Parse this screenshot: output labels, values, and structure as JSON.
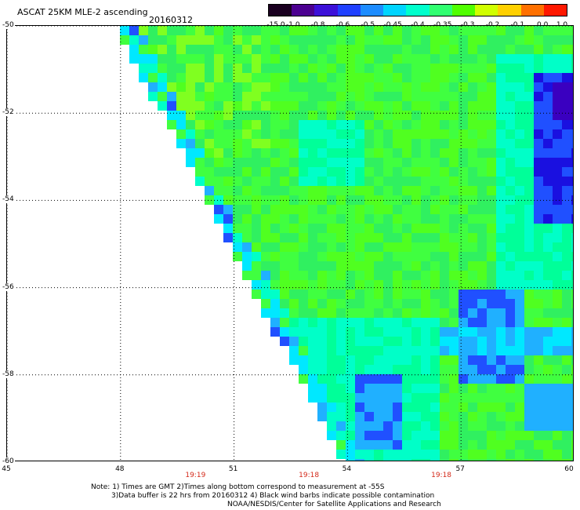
{
  "title": "ASCAT 25KM MLE-2 ascending",
  "date": "20160312",
  "colorbar": {
    "labels": [
      "-15.0",
      "-1.0",
      "-0.8",
      "-0.6",
      "-0.5",
      "-0.45",
      "-0.4",
      "-0.35",
      "-0.3",
      "-0.2",
      "-0.1",
      "0.0",
      "1.0"
    ],
    "colors": [
      "#1a0020",
      "#4b0090",
      "#3c10d8",
      "#2040ff",
      "#1d8cff",
      "#00d4ff",
      "#00ffcc",
      "#30ff70",
      "#50ff00",
      "#d0ff00",
      "#ffd000",
      "#ff7000",
      "#ff1800"
    ]
  },
  "chart_data": {
    "type": "heatmap",
    "title": "ASCAT 25KM MLE-2 ascending",
    "xlim": [
      45,
      60
    ],
    "ylim": [
      -60,
      -50
    ],
    "xticks": [
      "45",
      "48",
      "51",
      "54",
      "57",
      "60"
    ],
    "yticks": [
      "-50",
      "-52",
      "-54",
      "-56",
      "-58",
      "-60"
    ],
    "swath_edge": [
      [
        48,
        -50
      ],
      [
        54,
        -60
      ]
    ],
    "low_value_regions": [
      {
        "lon_range": [
          58.5,
          60
        ],
        "lat_range": [
          -51,
          -55
        ],
        "level": "-0.6"
      },
      {
        "lon_range": [
          56.5,
          60
        ],
        "lat_range": [
          -56.5,
          -58
        ],
        "level": "-0.5"
      },
      {
        "lon_range": [
          54,
          55
        ],
        "lat_range": [
          -58,
          -60
        ],
        "level": "-0.6"
      }
    ],
    "times": [
      {
        "lon": 50,
        "label": "19:19"
      },
      {
        "lon": 53,
        "label": "19:18"
      },
      {
        "lon": 56.5,
        "label": "19:18"
      }
    ]
  },
  "notes": [
    "Note: 1) Times are GMT 2)Times along bottom correspond to measurement at -55S",
    "3)Data buffer is 22 hrs from 20160312 4) Black wind barbs indicate possible contamination",
    "NOAA/NESDIS/Center for Satellite Applications and Research"
  ]
}
